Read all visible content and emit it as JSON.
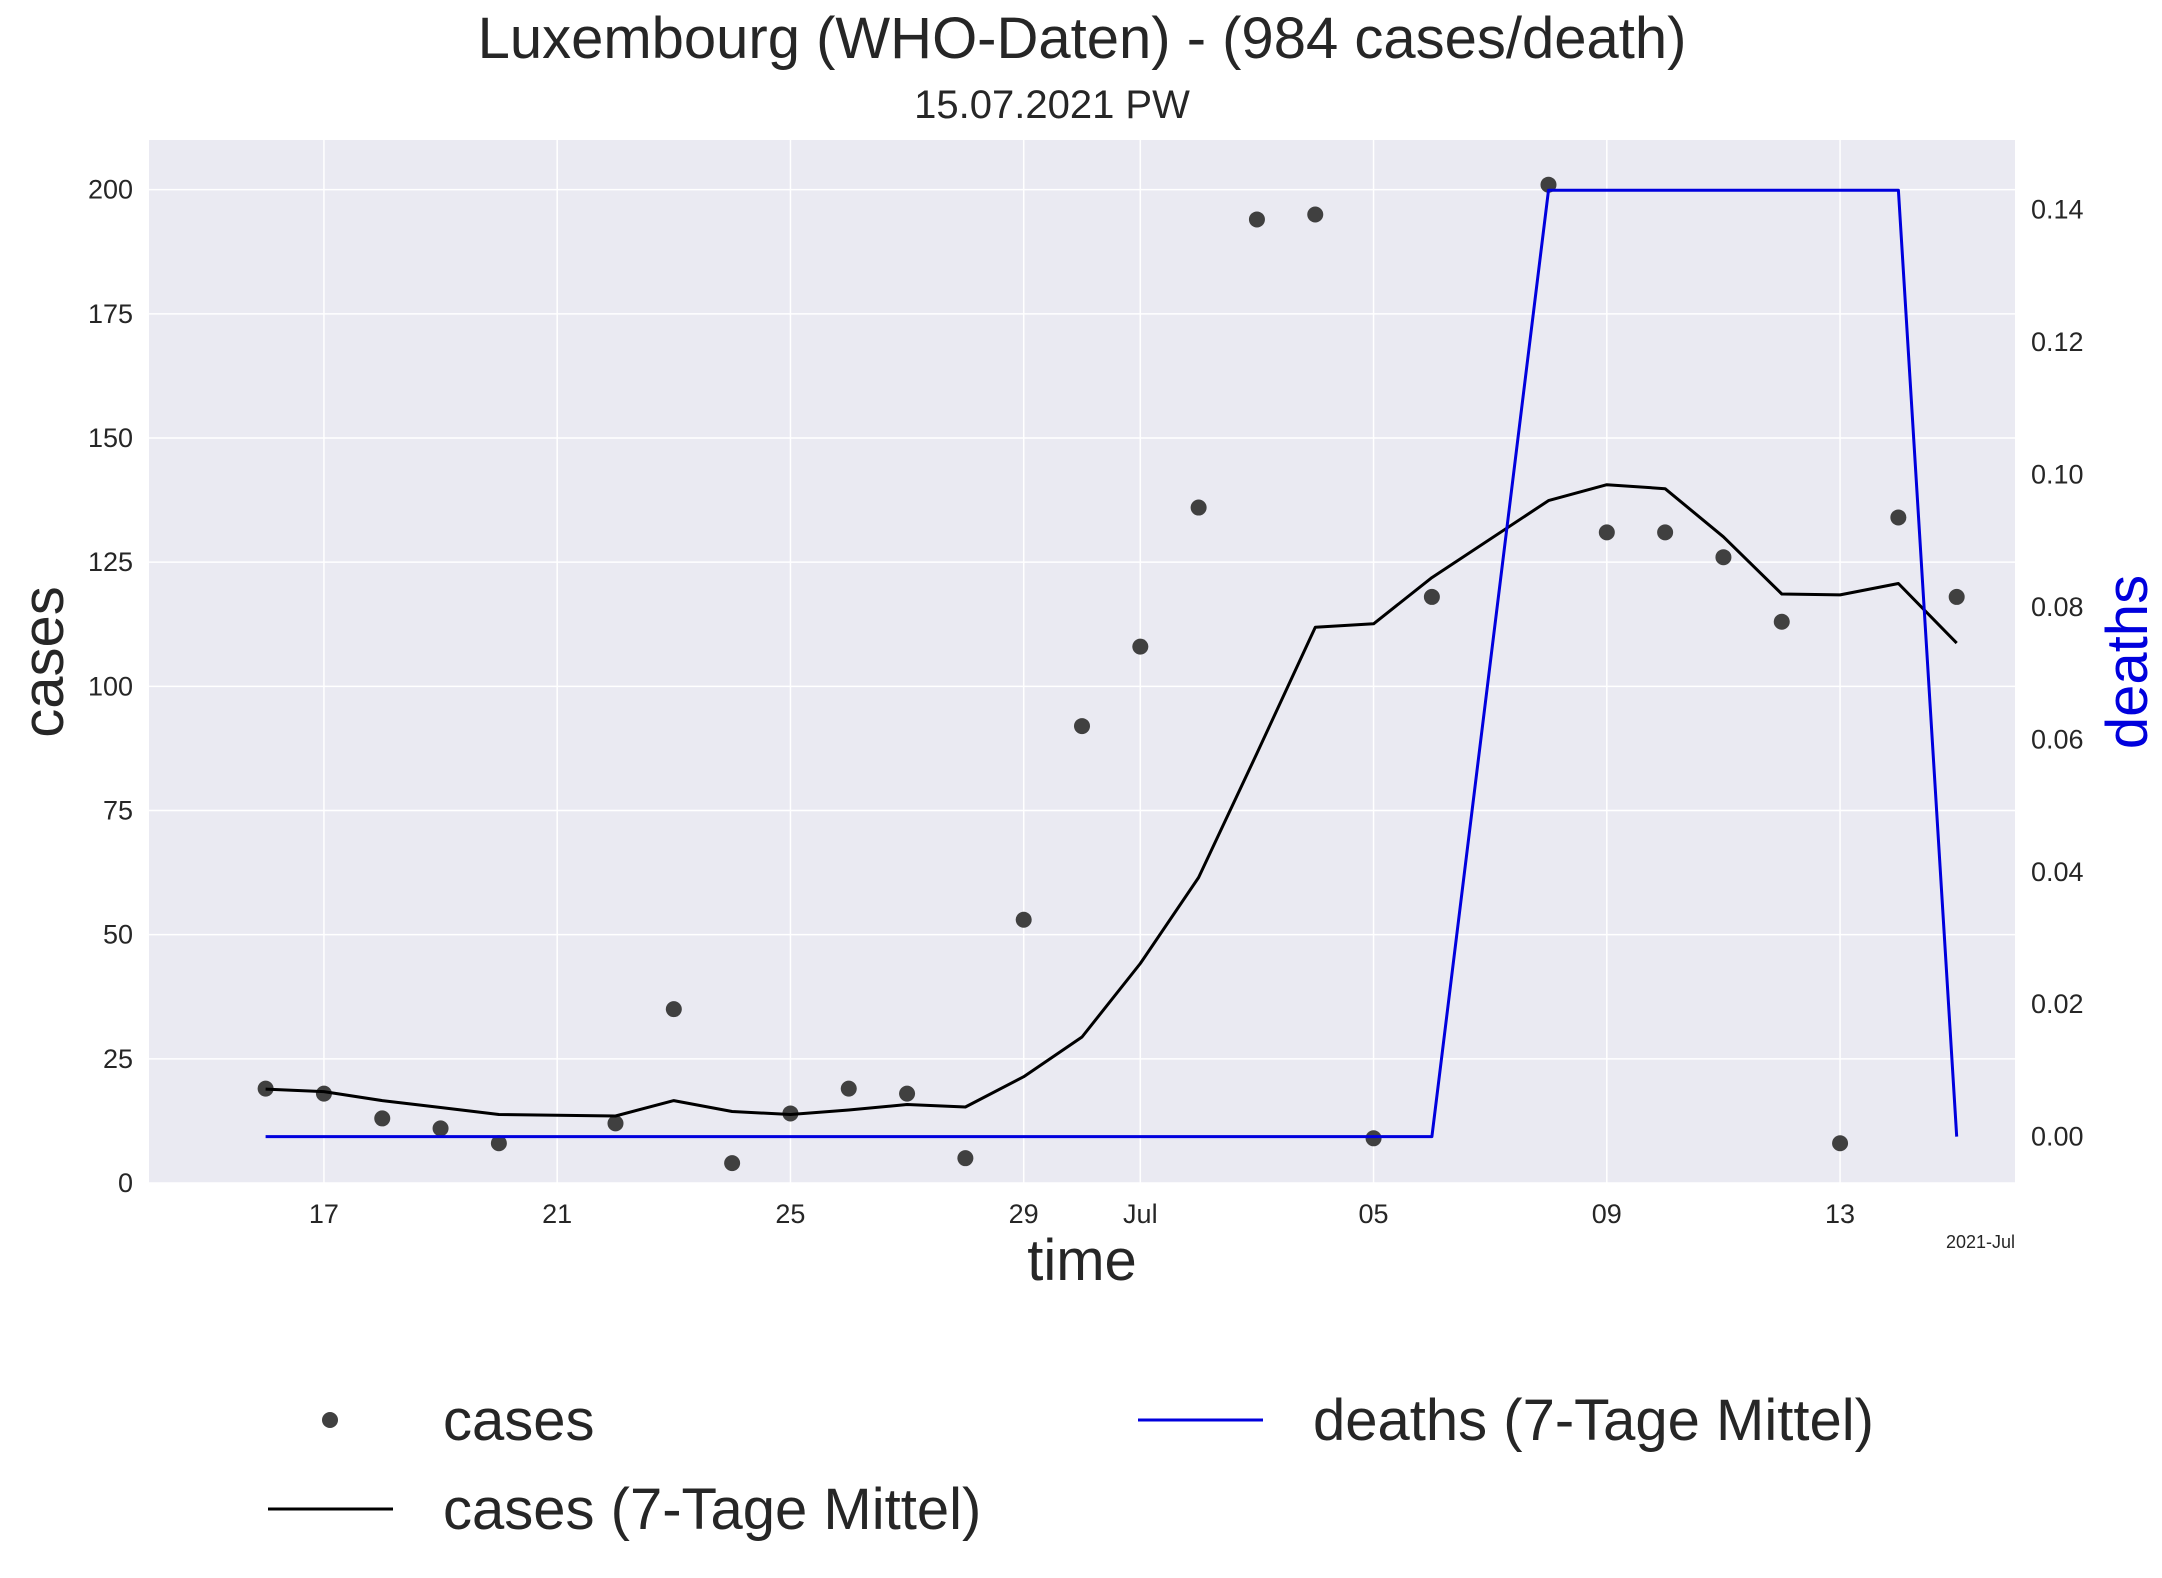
{
  "chart_data": {
    "type": "line",
    "title": "Luxembourg (WHO-Daten) - (984 cases/death)",
    "subtitle": "15.07.2021 PW",
    "xlabel": "time",
    "ylabel_left": "cases",
    "ylabel_right": "deaths",
    "x_offset_label": "2021-Jul",
    "grid": true,
    "legend_position": "bottom",
    "colors": {
      "background": "#eaeaf2",
      "grid": "#ffffff",
      "cases_points": "#404040",
      "cases_avg": "#000000",
      "deaths_avg": "#0000dd",
      "deaths_axis_label": "#0000dd"
    },
    "x_range": [
      "2021-06-14",
      "2021-07-16"
    ],
    "x_ticks": [
      {
        "date": "2021-06-17",
        "label": "17"
      },
      {
        "date": "2021-06-21",
        "label": "21"
      },
      {
        "date": "2021-06-25",
        "label": "25"
      },
      {
        "date": "2021-06-29",
        "label": "29"
      },
      {
        "date": "2021-07-01",
        "label": "Jul"
      },
      {
        "date": "2021-07-05",
        "label": "05"
      },
      {
        "date": "2021-07-09",
        "label": "09"
      },
      {
        "date": "2021-07-13",
        "label": "13"
      }
    ],
    "y_left": {
      "min": 0,
      "max": 210,
      "ticks": [
        0,
        25,
        50,
        75,
        100,
        125,
        150,
        175,
        200
      ]
    },
    "y_right": {
      "min": -0.007,
      "max": 0.1505,
      "ticks": [
        0.0,
        0.02,
        0.04,
        0.06,
        0.08,
        0.1,
        0.12,
        0.14
      ]
    },
    "series": [
      {
        "name": "cases",
        "kind": "scatter",
        "axis": "left",
        "points": [
          {
            "x": "2021-06-16",
            "y": 19
          },
          {
            "x": "2021-06-17",
            "y": 18
          },
          {
            "x": "2021-06-18",
            "y": 13
          },
          {
            "x": "2021-06-19",
            "y": 11
          },
          {
            "x": "2021-06-20",
            "y": 8
          },
          {
            "x": "2021-06-22",
            "y": 12
          },
          {
            "x": "2021-06-23",
            "y": 35
          },
          {
            "x": "2021-06-24",
            "y": 4
          },
          {
            "x": "2021-06-25",
            "y": 14
          },
          {
            "x": "2021-06-26",
            "y": 19
          },
          {
            "x": "2021-06-27",
            "y": 18
          },
          {
            "x": "2021-06-28",
            "y": 5
          },
          {
            "x": "2021-06-29",
            "y": 53
          },
          {
            "x": "2021-06-30",
            "y": 92
          },
          {
            "x": "2021-07-01",
            "y": 108
          },
          {
            "x": "2021-07-02",
            "y": 136
          },
          {
            "x": "2021-07-03",
            "y": 194
          },
          {
            "x": "2021-07-04",
            "y": 195
          },
          {
            "x": "2021-07-05",
            "y": 9
          },
          {
            "x": "2021-07-06",
            "y": 118
          },
          {
            "x": "2021-07-08",
            "y": 201
          },
          {
            "x": "2021-07-09",
            "y": 131
          },
          {
            "x": "2021-07-10",
            "y": 131
          },
          {
            "x": "2021-07-11",
            "y": 126
          },
          {
            "x": "2021-07-12",
            "y": 113
          },
          {
            "x": "2021-07-13",
            "y": 8
          },
          {
            "x": "2021-07-14",
            "y": 134
          },
          {
            "x": "2021-07-15",
            "y": 118
          }
        ]
      },
      {
        "name": "cases (7-Tage Mittel)",
        "kind": "line",
        "axis": "left",
        "points": [
          {
            "x": "2021-06-16",
            "y": 18.9
          },
          {
            "x": "2021-06-17",
            "y": 18.4
          },
          {
            "x": "2021-06-18",
            "y": 16.6
          },
          {
            "x": "2021-06-19",
            "y": 15.2
          },
          {
            "x": "2021-06-20",
            "y": 13.8
          },
          {
            "x": "2021-06-22",
            "y": 13.5
          },
          {
            "x": "2021-06-23",
            "y": 16.6
          },
          {
            "x": "2021-06-24",
            "y": 14.4
          },
          {
            "x": "2021-06-25",
            "y": 13.8
          },
          {
            "x": "2021-06-26",
            "y": 14.7
          },
          {
            "x": "2021-06-27",
            "y": 15.8
          },
          {
            "x": "2021-06-28",
            "y": 15.3
          },
          {
            "x": "2021-06-29",
            "y": 21.4
          },
          {
            "x": "2021-06-30",
            "y": 29.4
          },
          {
            "x": "2021-07-01",
            "y": 44.2
          },
          {
            "x": "2021-07-02",
            "y": 61.5
          },
          {
            "x": "2021-07-03",
            "y": 86.5
          },
          {
            "x": "2021-07-04",
            "y": 111.9
          },
          {
            "x": "2021-07-05",
            "y": 112.6
          },
          {
            "x": "2021-07-06",
            "y": 121.9
          },
          {
            "x": "2021-07-08",
            "y": 137.4
          },
          {
            "x": "2021-07-09",
            "y": 140.6
          },
          {
            "x": "2021-07-10",
            "y": 139.8
          },
          {
            "x": "2021-07-11",
            "y": 130.1
          },
          {
            "x": "2021-07-12",
            "y": 118.6
          },
          {
            "x": "2021-07-13",
            "y": 118.4
          },
          {
            "x": "2021-07-14",
            "y": 120.7
          },
          {
            "x": "2021-07-15",
            "y": 108.7
          }
        ]
      },
      {
        "name": "deaths (7-Tage Mittel)",
        "kind": "line",
        "axis": "right",
        "points": [
          {
            "x": "2021-06-16",
            "y": 0.0
          },
          {
            "x": "2021-07-06",
            "y": 0.0
          },
          {
            "x": "2021-07-08",
            "y": 0.1429
          },
          {
            "x": "2021-07-14",
            "y": 0.1429
          },
          {
            "x": "2021-07-15",
            "y": 0.0
          }
        ]
      }
    ]
  }
}
